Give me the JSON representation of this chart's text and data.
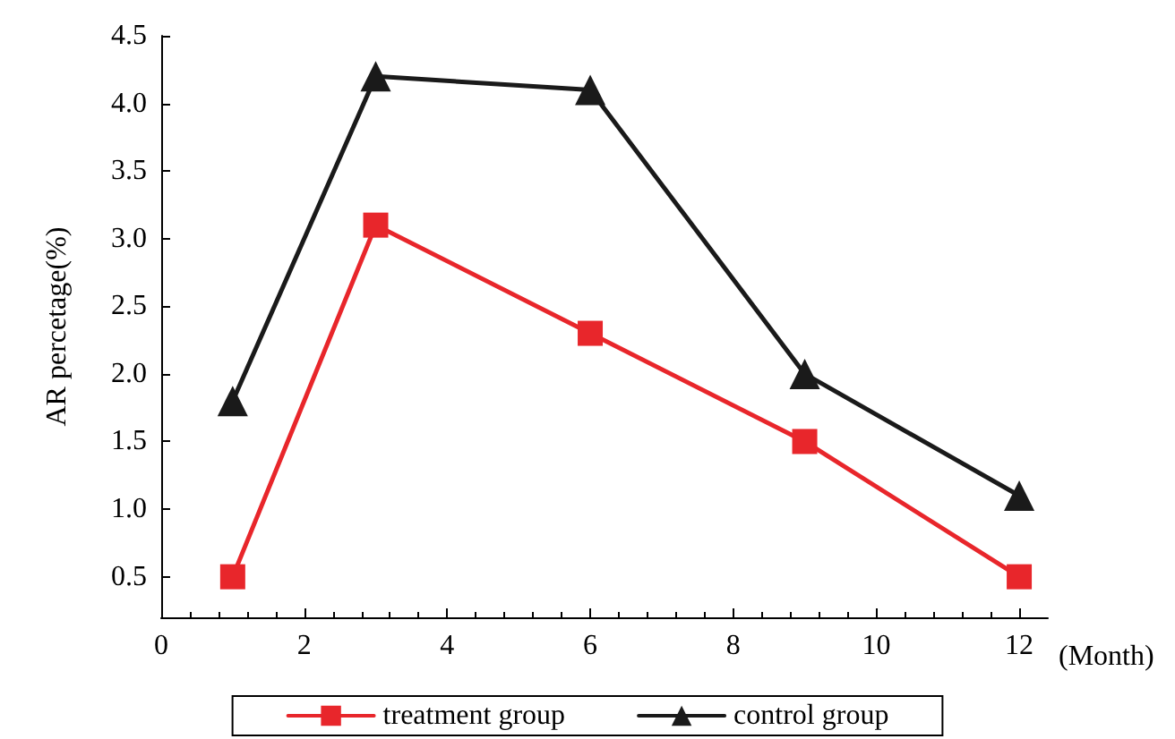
{
  "chart_data": {
    "type": "line",
    "xlabel": "(Month)",
    "ylabel": "AR percetage(%)",
    "x": [
      1,
      3,
      6,
      9,
      12
    ],
    "series": [
      {
        "name": "treatment group",
        "color": "#e8262b",
        "marker": "square",
        "values": [
          0.5,
          3.1,
          2.3,
          1.5,
          0.5
        ]
      },
      {
        "name": "control group",
        "color": "#1a1a1a",
        "marker": "triangle",
        "values": [
          1.8,
          4.2,
          4.1,
          2.0,
          1.1
        ]
      }
    ],
    "xlim": [
      0,
      12.4
    ],
    "xticks": [
      0,
      2,
      4,
      6,
      8,
      10,
      12
    ],
    "ylim": [
      0.2,
      4.5
    ],
    "yticks": [
      {
        "value": 0.5,
        "label": "0.5"
      },
      {
        "value": 1,
        "label": "1.0"
      },
      {
        "value": 1.5,
        "label": "1.5"
      },
      {
        "value": 2,
        "label": "2.0"
      },
      {
        "value": 2.5,
        "label": "2.5"
      },
      {
        "value": 3,
        "label": "3.0"
      },
      {
        "value": 3.5,
        "label": "3.5"
      },
      {
        "value": 4,
        "label": "4.0"
      },
      {
        "value": 4.5,
        "label": "4.5"
      }
    ],
    "grid": false,
    "legend": "bottom",
    "line_style": "solid"
  }
}
